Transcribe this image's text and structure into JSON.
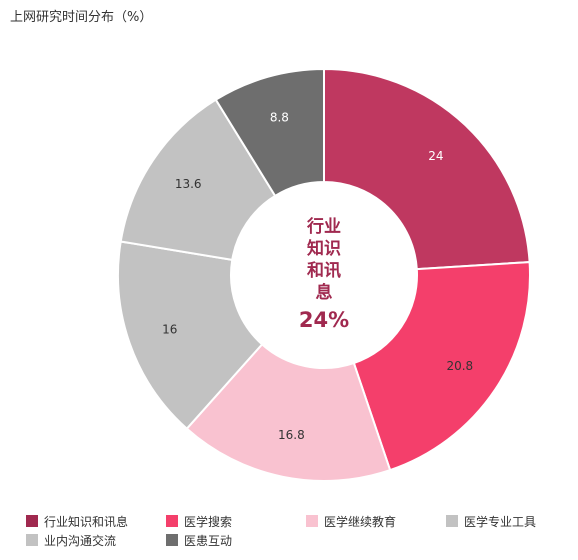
{
  "title": "上网研究时间分布（%）",
  "center": {
    "name_lines": [
      "行业",
      "知识",
      "和讯",
      "息"
    ],
    "value_text": "24%"
  },
  "chart_data": {
    "type": "pie",
    "donut": true,
    "title": "上网研究时间分布（%）",
    "legend_position": "bottom",
    "series": [
      {
        "name": "行业知识和讯息",
        "value": 24,
        "label": "24",
        "color": "#bf3860"
      },
      {
        "name": "医学搜索",
        "value": 20.8,
        "label": "20.8",
        "color": "#f43f6b"
      },
      {
        "name": "医学继续教育",
        "value": 16.8,
        "label": "16.8",
        "color": "#f9c2d0"
      },
      {
        "name": "医学专业工具",
        "value": 16,
        "label": "16",
        "color": "#c2c2c2"
      },
      {
        "name": "业内沟通交流",
        "value": 13.6,
        "label": "13.6",
        "color": "#c2c2c2"
      },
      {
        "name": "医患互动",
        "value": 8.8,
        "label": "8.8",
        "color": "#6e6e6e"
      }
    ]
  },
  "legend": [
    {
      "label": "行业知识和讯息",
      "color": "#a0294f"
    },
    {
      "label": "医学搜索",
      "color": "#f43f6b"
    },
    {
      "label": "医学继续教育",
      "color": "#f9c2d0"
    },
    {
      "label": "医学专业工具",
      "color": "#c2c2c2"
    },
    {
      "label": "业内沟通交流",
      "color": "#c2c2c2"
    },
    {
      "label": "医患互动",
      "color": "#6e6e6e"
    }
  ]
}
